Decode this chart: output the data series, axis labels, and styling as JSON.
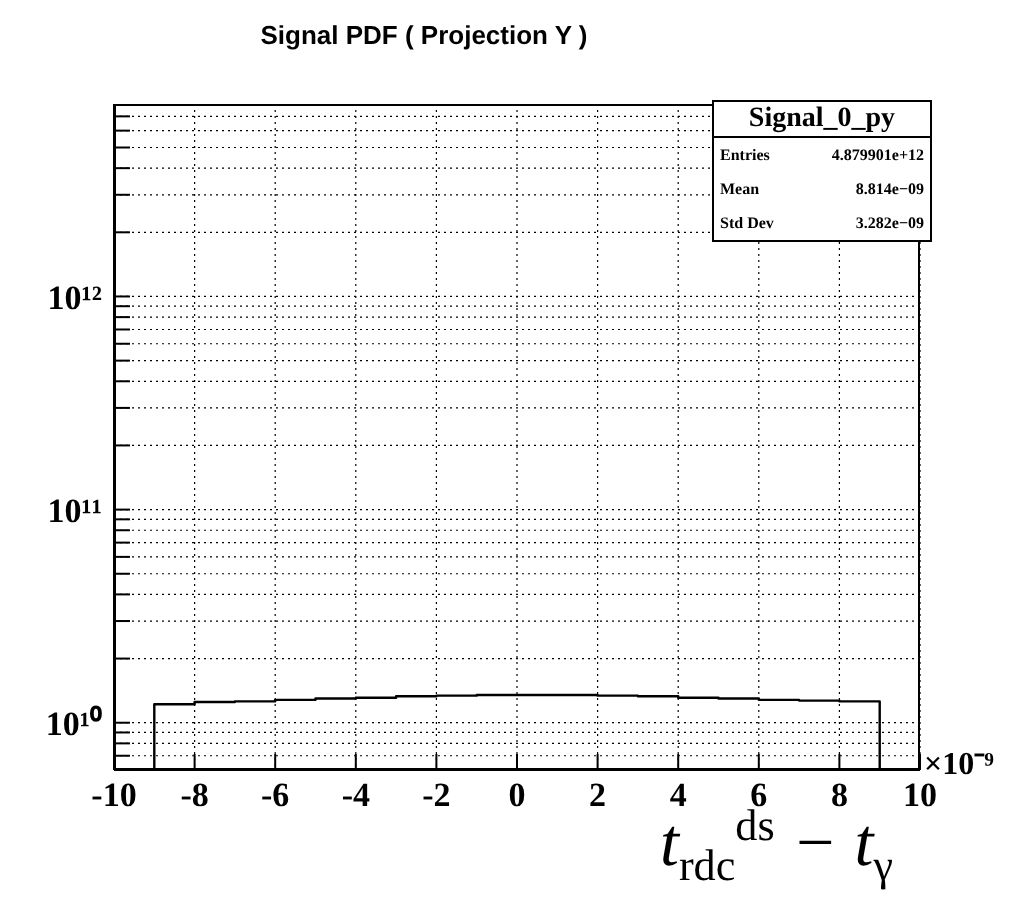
{
  "chart_data": {
    "type": "histogram",
    "title": "Signal PDF ( Projection Y )",
    "xlabel": "t$_{rdc}$$^{ds}$ − t$_{γ}$",
    "annotations": [
      "Signal_0_py",
      "Entries",
      "4.879901e+12",
      "Mean",
      "8.814e−09",
      "Std Dev",
      "3.282e−09",
      "×10⁻⁹"
    ],
    "bins": [
      -9,
      -8,
      -7,
      -6,
      -5,
      -4,
      -3,
      -2,
      -1,
      0,
      1,
      2,
      3,
      4,
      5,
      6,
      7,
      8,
      9
    ],
    "values": [
      12200000000.0,
      12500000000.0,
      12600000000.0,
      12800000000.0,
      13000000000.0,
      13100000000.0,
      13300000000.0,
      13400000000.0,
      13500000000.0,
      13500000000.0,
      13500000000.0,
      13400000000.0,
      13300000000.0,
      13100000000.0,
      13000000000.0,
      12800000000.0,
      12700000000.0,
      12600000000.0
    ],
    "color": "#000000",
    "xlim": [
      -10,
      10
    ],
    "xticks": [
      -10,
      -8,
      -6,
      -4,
      -2,
      0,
      2,
      4,
      6,
      8,
      10
    ],
    "ylim": [
      6000000000.0,
      8000000000000.0
    ],
    "yticks": [
      {
        "value": 7000000000.0,
        "label": null
      },
      {
        "value": 8000000000.0,
        "label": null
      },
      {
        "value": 9000000000.0,
        "label": null
      },
      {
        "value": 10000000000.0,
        "label": "10¹⁰"
      },
      {
        "value": 20000000000.0,
        "label": null
      },
      {
        "value": 30000000000.0,
        "label": null
      },
      {
        "value": 40000000000.0,
        "label": null
      },
      {
        "value": 50000000000.0,
        "label": null
      },
      {
        "value": 60000000000.0,
        "label": null
      },
      {
        "value": 70000000000.0,
        "label": null
      },
      {
        "value": 80000000000.0,
        "label": null
      },
      {
        "value": 90000000000.0,
        "label": null
      },
      {
        "value": 100000000000.0,
        "label": "10¹¹"
      },
      {
        "value": 200000000000.0,
        "label": null
      },
      {
        "value": 300000000000.0,
        "label": null
      },
      {
        "value": 400000000000.0,
        "label": null
      },
      {
        "value": 500000000000.0,
        "label": null
      },
      {
        "value": 600000000000.0,
        "label": null
      },
      {
        "value": 700000000000.0,
        "label": null
      },
      {
        "value": 800000000000.0,
        "label": null
      },
      {
        "value": 900000000000.0,
        "label": null
      },
      {
        "value": 1000000000000.0,
        "label": "10¹²"
      },
      {
        "value": 2000000000000.0,
        "label": null
      },
      {
        "value": 3000000000000.0,
        "label": null
      },
      {
        "value": 4000000000000.0,
        "label": null
      },
      {
        "value": 5000000000000.0,
        "label": null
      },
      {
        "value": 6000000000000.0,
        "label": null
      },
      {
        "value": 7000000000000.0,
        "label": null
      }
    ],
    "log": "y",
    "grid": true
  }
}
